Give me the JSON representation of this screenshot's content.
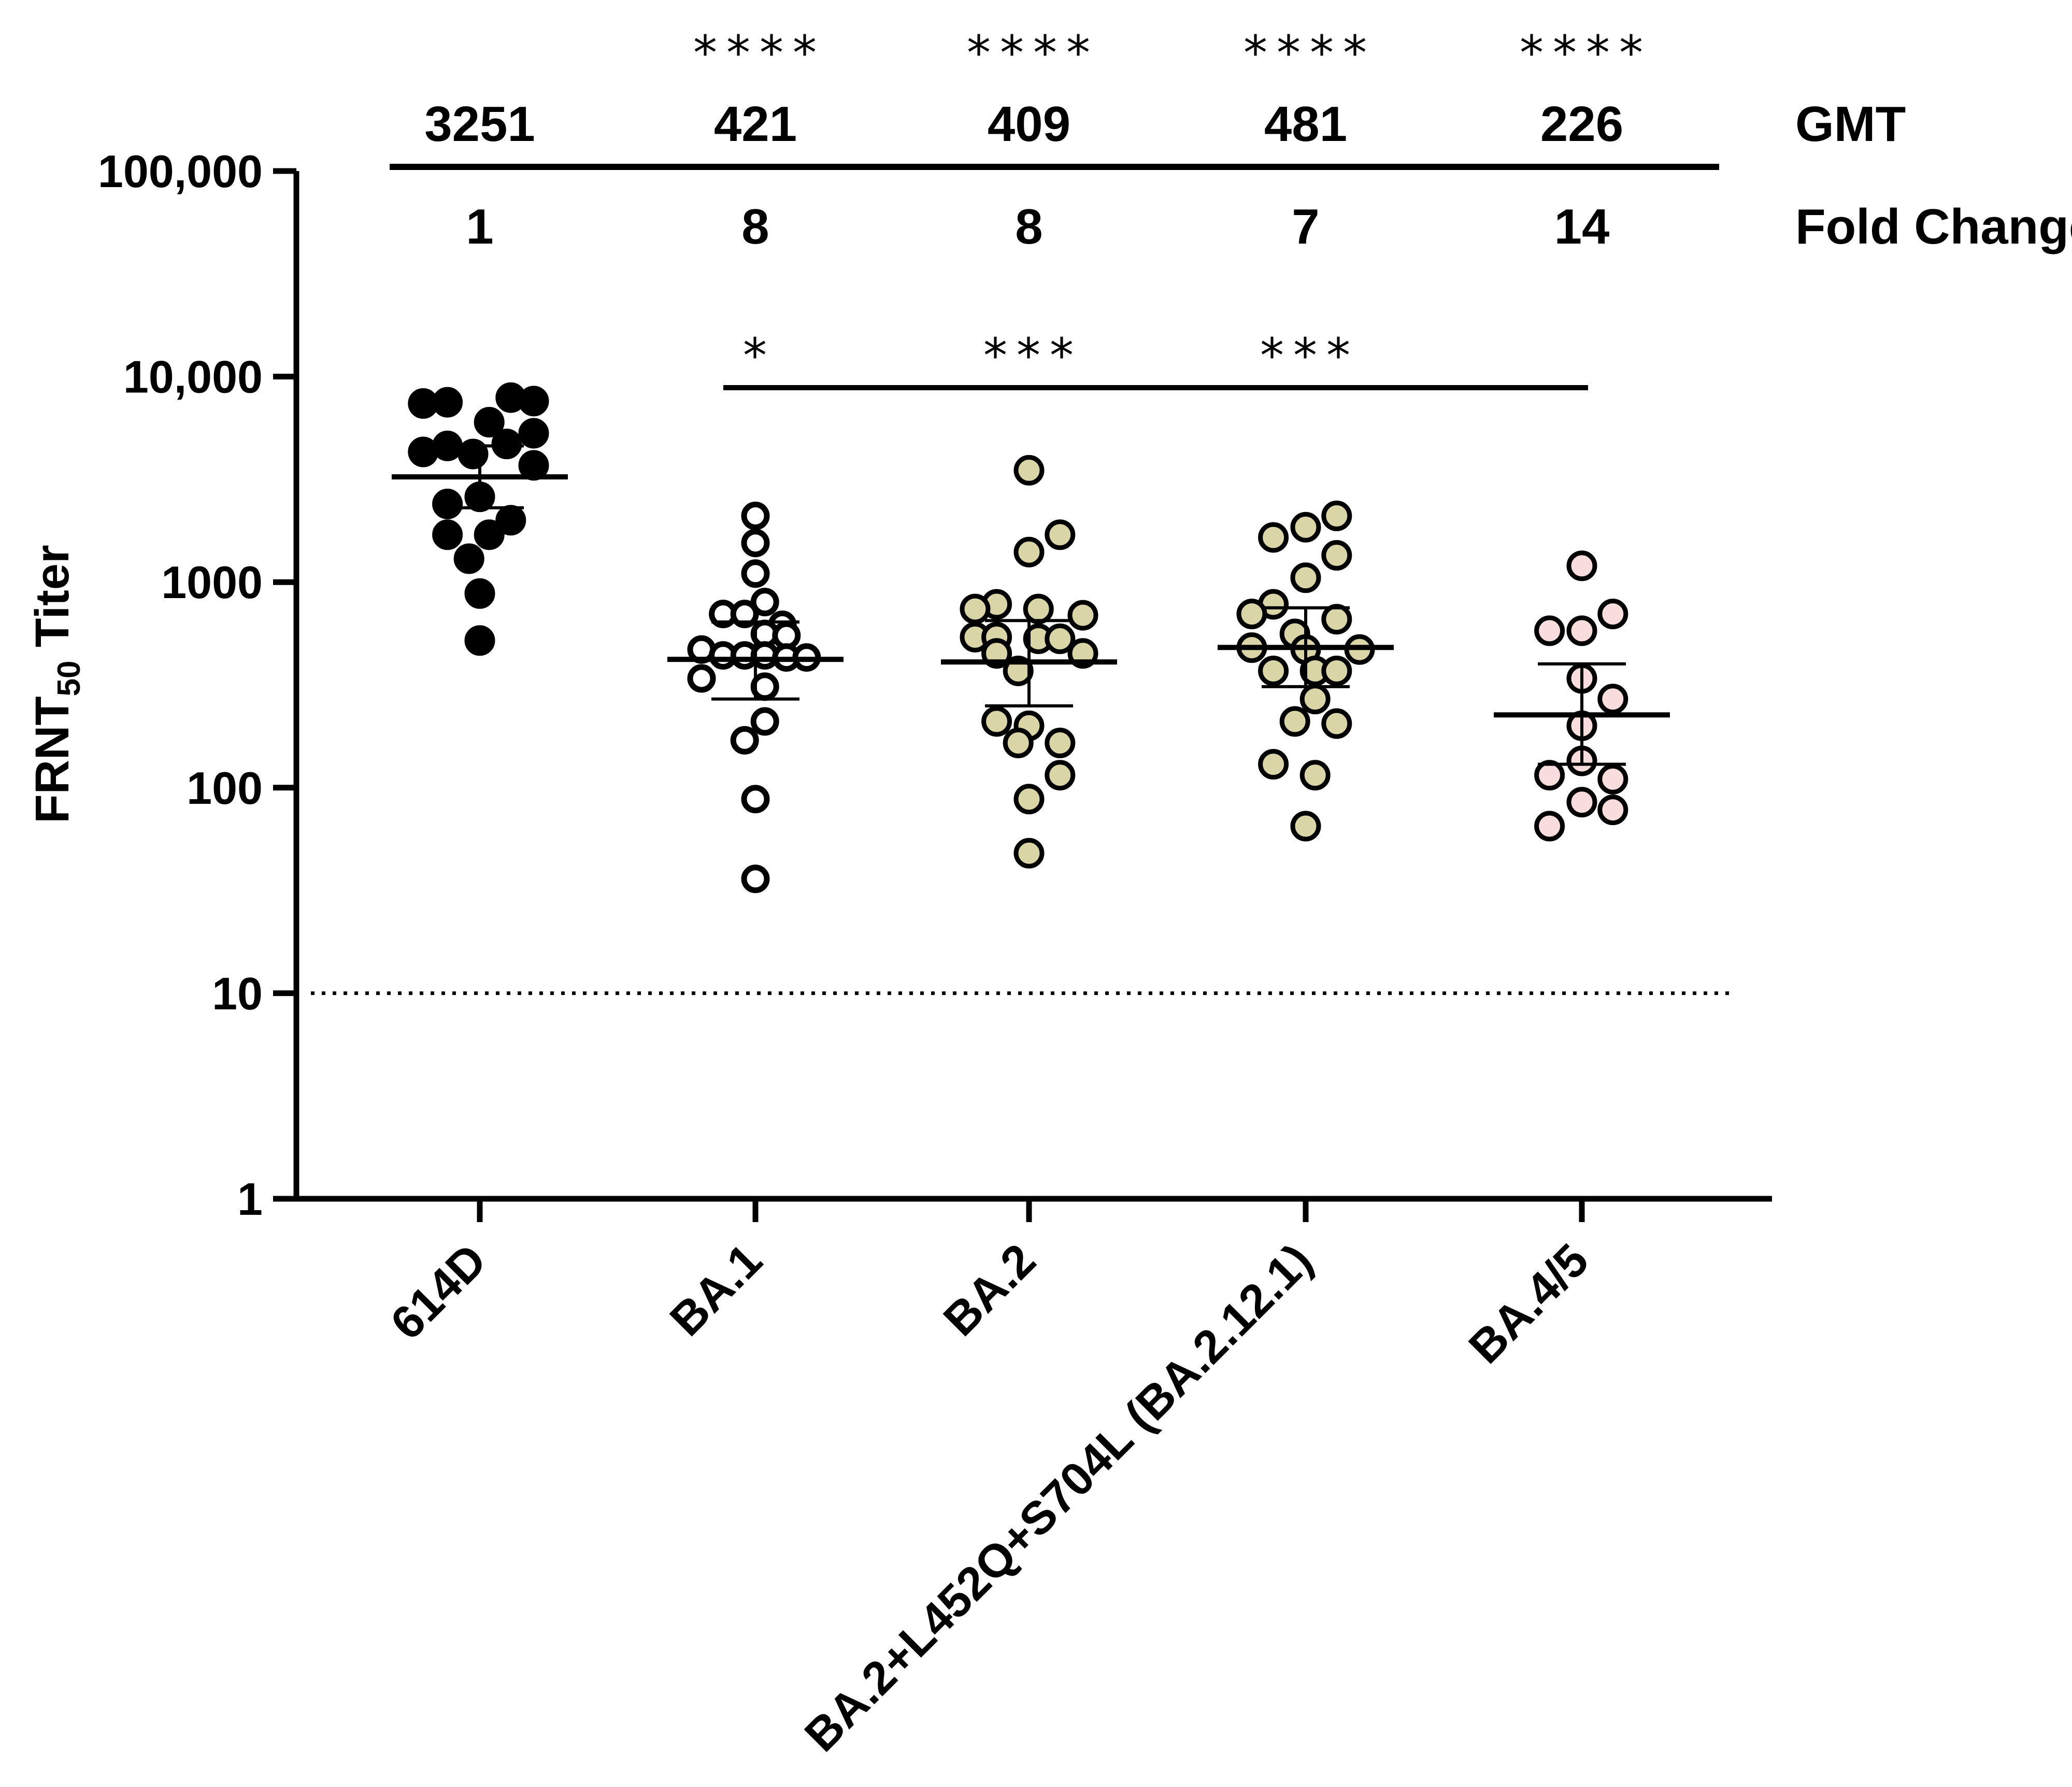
{
  "chart_data": {
    "type": "scatter",
    "subtype": "dot-plot-with-geometric-mean-and-error-bars",
    "yscale": "log",
    "ylim": [
      1,
      100000
    ],
    "y_ticks": [
      {
        "value": 100000,
        "label": "100,000"
      },
      {
        "value": 10000,
        "label": "10,000"
      },
      {
        "value": 1000,
        "label": "1000"
      },
      {
        "value": 100,
        "label": "100"
      },
      {
        "value": 10,
        "label": "10"
      },
      {
        "value": 1,
        "label": "1"
      }
    ],
    "ylabel": {
      "main": "FRNT",
      "sub": "50",
      "rest": " Titer"
    },
    "limit_of_detection": 10,
    "header_labels": {
      "gmt": "GMT",
      "fold_change": "Fold Change"
    },
    "categories": [
      "614D",
      "BA.1",
      "BA.2",
      "BA.2+L452Q+S704L (BA.2.12.1)",
      "BA.4/5"
    ],
    "series": [
      {
        "name": "614D",
        "color": "#000000",
        "filled": true,
        "gmt": "3251",
        "fold_change": "1",
        "sig_vs_614D": "",
        "gmt_value": 3251,
        "ci_low": 2300,
        "ci_high": 4600,
        "points": [
          {
            "v": 7400,
            "o": -0.42
          },
          {
            "v": 7500,
            "o": -0.24
          },
          {
            "v": 7900,
            "o": 0.23
          },
          {
            "v": 7600,
            "o": 0.4
          },
          {
            "v": 6000,
            "o": 0.07
          },
          {
            "v": 5300,
            "o": 0.4
          },
          {
            "v": 4600,
            "o": -0.24
          },
          {
            "v": 4700,
            "o": 0.2
          },
          {
            "v": 4300,
            "o": -0.42
          },
          {
            "v": 4200,
            "o": -0.05
          },
          {
            "v": 3700,
            "o": 0.4
          },
          {
            "v": 2400,
            "o": -0.24
          },
          {
            "v": 2600,
            "o": 0.0
          },
          {
            "v": 2000,
            "o": 0.23
          },
          {
            "v": 1700,
            "o": -0.24
          },
          {
            "v": 1700,
            "o": 0.07
          },
          {
            "v": 1300,
            "o": -0.08
          },
          {
            "v": 880,
            "o": 0.0
          },
          {
            "v": 520,
            "o": 0.0
          }
        ]
      },
      {
        "name": "BA.1",
        "color": "#ffffff",
        "filled": false,
        "gmt": "421",
        "fold_change": "8",
        "sig_vs_614D": "****",
        "gmt_value": 421,
        "ci_low": 270,
        "ci_high": 640,
        "points": [
          {
            "v": 2100,
            "o": 0.0
          },
          {
            "v": 1550,
            "o": 0.0
          },
          {
            "v": 1100,
            "o": 0.0
          },
          {
            "v": 800,
            "o": 0.07
          },
          {
            "v": 700,
            "o": -0.24
          },
          {
            "v": 700,
            "o": -0.08
          },
          {
            "v": 620,
            "o": 0.2
          },
          {
            "v": 560,
            "o": 0.07
          },
          {
            "v": 550,
            "o": 0.23
          },
          {
            "v": 470,
            "o": -0.4
          },
          {
            "v": 440,
            "o": -0.24
          },
          {
            "v": 440,
            "o": -0.08
          },
          {
            "v": 440,
            "o": 0.07
          },
          {
            "v": 430,
            "o": 0.23
          },
          {
            "v": 430,
            "o": 0.38
          },
          {
            "v": 340,
            "o": -0.4
          },
          {
            "v": 310,
            "o": 0.07
          },
          {
            "v": 210,
            "o": 0.07
          },
          {
            "v": 170,
            "o": -0.08
          },
          {
            "v": 88,
            "o": 0.0
          },
          {
            "v": 36,
            "o": 0.0
          }
        ]
      },
      {
        "name": "BA.2",
        "color": "#d9d5a7",
        "filled": true,
        "gmt": "409",
        "fold_change": "8",
        "sig_vs_614D": "****",
        "gmt_value": 409,
        "ci_low": 250,
        "ci_high": 650,
        "points": [
          {
            "v": 3500,
            "o": 0.0
          },
          {
            "v": 1700,
            "o": 0.23
          },
          {
            "v": 1400,
            "o": 0.0
          },
          {
            "v": 780,
            "o": -0.24
          },
          {
            "v": 740,
            "o": -0.4
          },
          {
            "v": 740,
            "o": 0.07
          },
          {
            "v": 690,
            "o": 0.4
          },
          {
            "v": 540,
            "o": -0.4
          },
          {
            "v": 540,
            "o": -0.24
          },
          {
            "v": 530,
            "o": 0.07
          },
          {
            "v": 530,
            "o": 0.23
          },
          {
            "v": 450,
            "o": -0.24
          },
          {
            "v": 450,
            "o": 0.4
          },
          {
            "v": 370,
            "o": -0.08
          },
          {
            "v": 210,
            "o": -0.24
          },
          {
            "v": 200,
            "o": 0.0
          },
          {
            "v": 165,
            "o": -0.08
          },
          {
            "v": 165,
            "o": 0.23
          },
          {
            "v": 115,
            "o": 0.23
          },
          {
            "v": 88,
            "o": 0.0
          },
          {
            "v": 48,
            "o": 0.0
          }
        ]
      },
      {
        "name": "BA.2+L452Q+S704L (BA.2.12.1)",
        "color": "#d9d5a7",
        "filled": true,
        "gmt": "481",
        "fold_change": "7",
        "sig_vs_614D": "****",
        "gmt_value": 481,
        "ci_low": 310,
        "ci_high": 750,
        "points": [
          {
            "v": 2100,
            "o": 0.23
          },
          {
            "v": 1850,
            "o": 0.0
          },
          {
            "v": 1650,
            "o": -0.24
          },
          {
            "v": 1350,
            "o": 0.23
          },
          {
            "v": 1050,
            "o": 0.0
          },
          {
            "v": 780,
            "o": -0.24
          },
          {
            "v": 700,
            "o": -0.4
          },
          {
            "v": 660,
            "o": 0.23
          },
          {
            "v": 560,
            "o": -0.08
          },
          {
            "v": 480,
            "o": -0.4
          },
          {
            "v": 470,
            "o": 0.0
          },
          {
            "v": 470,
            "o": 0.4
          },
          {
            "v": 370,
            "o": -0.24
          },
          {
            "v": 370,
            "o": 0.07
          },
          {
            "v": 370,
            "o": 0.23
          },
          {
            "v": 270,
            "o": 0.07
          },
          {
            "v": 210,
            "o": -0.08
          },
          {
            "v": 205,
            "o": 0.23
          },
          {
            "v": 130,
            "o": -0.24
          },
          {
            "v": 115,
            "o": 0.07
          },
          {
            "v": 65,
            "o": 0.0
          }
        ]
      },
      {
        "name": "BA.4/5",
        "color": "#f9dcdc",
        "filled": true,
        "gmt": "226",
        "fold_change": "14",
        "sig_vs_614D": "****",
        "gmt_value": 226,
        "ci_low": 130,
        "ci_high": 400,
        "points": [
          {
            "v": 1200,
            "o": 0.0
          },
          {
            "v": 700,
            "o": 0.23
          },
          {
            "v": 580,
            "o": -0.24
          },
          {
            "v": 580,
            "o": 0.0
          },
          {
            "v": 340,
            "o": 0.0
          },
          {
            "v": 270,
            "o": 0.23
          },
          {
            "v": 200,
            "o": 0.0
          },
          {
            "v": 135,
            "o": 0.0
          },
          {
            "v": 115,
            "o": -0.24
          },
          {
            "v": 110,
            "o": 0.23
          },
          {
            "v": 85,
            "o": 0.0
          },
          {
            "v": 78,
            "o": 0.23
          },
          {
            "v": 65,
            "o": -0.24
          }
        ]
      }
    ],
    "comparison_vs_BA45": {
      "from": "BA.1",
      "to": "BA.4/5",
      "marks": [
        {
          "category": "BA.1",
          "stars": "*"
        },
        {
          "category": "BA.2",
          "stars": "***"
        },
        {
          "category": "BA.2+L452Q+S704L (BA.2.12.1)",
          "stars": "***"
        }
      ]
    }
  }
}
